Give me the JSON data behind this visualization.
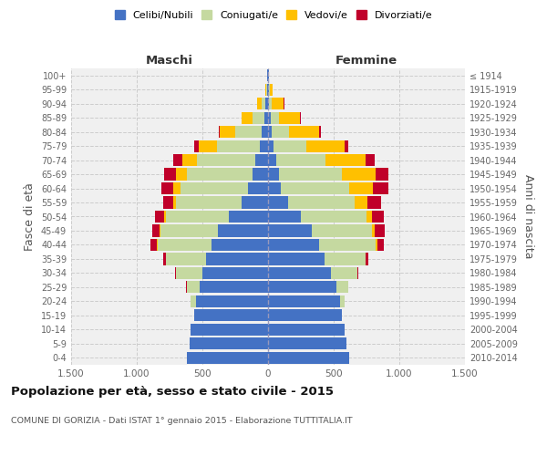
{
  "age_groups_display": [
    "100+",
    "95-99",
    "90-94",
    "85-89",
    "80-84",
    "75-79",
    "70-74",
    "65-69",
    "60-64",
    "55-59",
    "50-54",
    "45-49",
    "40-44",
    "35-39",
    "30-34",
    "25-29",
    "20-24",
    "15-19",
    "10-14",
    "5-9",
    "0-4"
  ],
  "birth_years_display": [
    "≤ 1914",
    "1915-1919",
    "1920-1924",
    "1925-1929",
    "1930-1934",
    "1935-1939",
    "1940-1944",
    "1945-1949",
    "1950-1954",
    "1955-1959",
    "1960-1964",
    "1965-1969",
    "1970-1974",
    "1975-1979",
    "1980-1984",
    "1985-1989",
    "1990-1994",
    "1995-1999",
    "2000-2004",
    "2005-2009",
    "2010-2014"
  ],
  "colors": {
    "celibi": "#4472c4",
    "coniugati": "#c5d9a0",
    "vedovi": "#ffc000",
    "divorziati": "#c0002a"
  },
  "m_cel": [
    620,
    600,
    590,
    560,
    550,
    520,
    500,
    470,
    430,
    380,
    300,
    200,
    150,
    120,
    100,
    60,
    50,
    30,
    20,
    10,
    5
  ],
  "m_con": [
    0,
    0,
    0,
    5,
    40,
    100,
    200,
    310,
    410,
    440,
    480,
    500,
    520,
    500,
    440,
    330,
    200,
    90,
    30,
    5,
    0
  ],
  "m_ved": [
    0,
    0,
    0,
    0,
    0,
    0,
    0,
    0,
    5,
    5,
    10,
    20,
    50,
    80,
    110,
    140,
    120,
    80,
    30,
    5,
    0
  ],
  "m_div": [
    0,
    0,
    0,
    0,
    0,
    5,
    10,
    20,
    50,
    60,
    70,
    80,
    90,
    90,
    70,
    30,
    5,
    0,
    0,
    0,
    0
  ],
  "f_nub": [
    620,
    600,
    580,
    560,
    550,
    520,
    480,
    430,
    390,
    330,
    250,
    150,
    100,
    80,
    60,
    40,
    30,
    20,
    10,
    10,
    5
  ],
  "f_con": [
    0,
    0,
    0,
    5,
    30,
    90,
    200,
    310,
    430,
    460,
    500,
    510,
    520,
    480,
    380,
    250,
    130,
    60,
    20,
    5,
    0
  ],
  "f_ved": [
    0,
    0,
    0,
    0,
    0,
    0,
    0,
    5,
    10,
    20,
    40,
    100,
    180,
    260,
    300,
    290,
    230,
    160,
    90,
    20,
    0
  ],
  "f_div": [
    0,
    0,
    0,
    0,
    0,
    0,
    5,
    20,
    55,
    80,
    90,
    100,
    120,
    100,
    70,
    30,
    15,
    10,
    5,
    0,
    0
  ],
  "xlim": 1500,
  "xtick_vals": [
    -1500,
    -1000,
    -500,
    0,
    500,
    1000,
    1500
  ],
  "xtick_labels": [
    "1.500",
    "1.000",
    "500",
    "0",
    "500",
    "1.000",
    "1.500"
  ],
  "title": "Popolazione per età, sesso e stato civile - 2015",
  "subtitle": "COMUNE DI GORIZIA - Dati ISTAT 1° gennaio 2015 - Elaborazione TUTTITALIA.IT",
  "ylabel_left": "Fasce di età",
  "ylabel_right": "Anni di nascita",
  "label_maschi": "Maschi",
  "label_femmine": "Femmine",
  "bg_color": "#f0f0f0",
  "bar_height": 0.85,
  "legend_labels": [
    "Celibi/Nubili",
    "Coniugati/e",
    "Vedovi/e",
    "Divorziati/e"
  ]
}
